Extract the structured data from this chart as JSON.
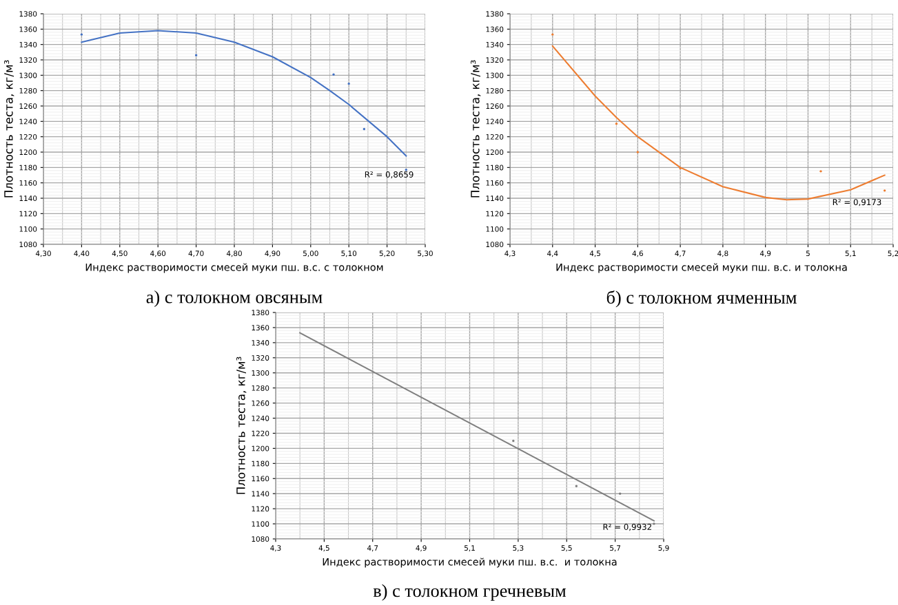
{
  "chart_data": [
    {
      "type": "scatter",
      "xlabel": "Индекс растворимости смесей муки пш. в.с. с толокном",
      "ylabel": "Плотность теста, кг/м³",
      "grid": true,
      "xlim": [
        4.3,
        5.3
      ],
      "xticks": [
        {
          "value": 4.3,
          "label": "4,30"
        },
        {
          "value": 4.4,
          "label": "4,40"
        },
        {
          "value": 4.5,
          "label": "4,50"
        },
        {
          "value": 4.6,
          "label": "4,60"
        },
        {
          "value": 4.7,
          "label": "4,70"
        },
        {
          "value": 4.8,
          "label": "4,80"
        },
        {
          "value": 4.9,
          "label": "4,90"
        },
        {
          "value": 5.0,
          "label": "5,00"
        },
        {
          "value": 5.1,
          "label": "5,10"
        },
        {
          "value": 5.2,
          "label": "5,20"
        },
        {
          "value": 5.3,
          "label": "5,30"
        }
      ],
      "ylim": [
        1080,
        1380
      ],
      "yticks": [
        1080,
        1100,
        1120,
        1140,
        1160,
        1180,
        1200,
        1220,
        1240,
        1260,
        1280,
        1300,
        1320,
        1340,
        1360,
        1380
      ],
      "series": [
        {
          "marker": "circle",
          "color": "#4472c4",
          "x": [
            4.4,
            4.7,
            5.06,
            5.1,
            5.14,
            5.25
          ],
          "values": [
            1353,
            1326,
            1301,
            1289,
            1230,
            1177
          ]
        },
        {
          "type": "line",
          "marker": "none",
          "color": "#4472c4",
          "x": [
            4.4,
            4.5,
            4.6,
            4.7,
            4.8,
            4.9,
            5.0,
            5.05,
            5.1,
            5.2,
            5.25
          ],
          "values": [
            1343,
            1355,
            1358,
            1355,
            1343,
            1324,
            1297,
            1280,
            1262,
            1220,
            1195
          ]
        }
      ],
      "annotations": [
        "R² = 0,8659",
        "а) с толокном овсяным"
      ]
    },
    {
      "type": "scatter",
      "xlabel": "Индекс растворимости смесей муки пш. в.с. и толокна",
      "ylabel": "Плотность теста, кг/м³",
      "grid": true,
      "xlim": [
        4.3,
        5.2
      ],
      "xticks": [
        {
          "value": 4.3,
          "label": "4,3"
        },
        {
          "value": 4.4,
          "label": "4,4"
        },
        {
          "value": 4.5,
          "label": "4,5"
        },
        {
          "value": 4.6,
          "label": "4,6"
        },
        {
          "value": 4.7,
          "label": "4,7"
        },
        {
          "value": 4.8,
          "label": "4,8"
        },
        {
          "value": 4.9,
          "label": "4,9"
        },
        5,
        {
          "value": 5.1,
          "label": "5,1"
        },
        {
          "value": 5.2,
          "label": "5,2"
        }
      ],
      "ylim": [
        1080,
        1380
      ],
      "yticks": [
        1080,
        1100,
        1120,
        1140,
        1160,
        1180,
        1200,
        1220,
        1240,
        1260,
        1280,
        1300,
        1320,
        1340,
        1360,
        1380
      ],
      "series": [
        {
          "marker": "circle",
          "color": "#ed7d31",
          "x": [
            4.4,
            4.55,
            4.6,
            4.7,
            5.03,
            5.18
          ],
          "values": [
            1353,
            1237,
            1200,
            1179,
            1175,
            1150
          ]
        },
        {
          "type": "line",
          "marker": "none",
          "color": "#ed7d31",
          "x": [
            4.4,
            4.5,
            4.55,
            4.6,
            4.7,
            4.8,
            4.9,
            4.95,
            5.0,
            5.1,
            5.18
          ],
          "values": [
            1338,
            1273,
            1245,
            1220,
            1180,
            1155,
            1141,
            1138,
            1139,
            1151,
            1170
          ]
        }
      ],
      "annotations": [
        "R² = 0,9173",
        "б) с толокном ячменным"
      ]
    },
    {
      "type": "scatter",
      "xlabel": "Индекс растворимости смесей муки пш. в.с.  и толокна",
      "ylabel": "Плотность теста, кг/м³",
      "grid": true,
      "xlim": [
        4.3,
        5.9
      ],
      "xticks": [
        {
          "value": 4.3,
          "label": "4,3"
        },
        {
          "value": 4.5,
          "label": "4,5"
        },
        {
          "value": 4.7,
          "label": "4,7"
        },
        {
          "value": 4.9,
          "label": "4,9"
        },
        {
          "value": 5.1,
          "label": "5,1"
        },
        {
          "value": 5.3,
          "label": "5,3"
        },
        {
          "value": 5.5,
          "label": "5,5"
        },
        {
          "value": 5.7,
          "label": "5,7"
        },
        {
          "value": 5.9,
          "label": "5,9"
        }
      ],
      "ylim": [
        1080,
        1380
      ],
      "yticks": [
        1080,
        1100,
        1120,
        1140,
        1160,
        1180,
        1200,
        1220,
        1240,
        1260,
        1280,
        1300,
        1320,
        1340,
        1360,
        1380
      ],
      "series": [
        {
          "marker": "circle",
          "color": "#7f7f7f",
          "x": [
            5.28,
            5.54,
            5.72,
            5.86
          ],
          "values": [
            1210,
            1150,
            1140,
            1100
          ]
        },
        {
          "type": "line",
          "marker": "none",
          "color": "#7f7f7f",
          "x": [
            4.4,
            5.86
          ],
          "values": [
            1353,
            1104
          ]
        }
      ],
      "annotations": [
        "R² = 0,9932",
        "в) с толокном гречневым"
      ]
    }
  ]
}
